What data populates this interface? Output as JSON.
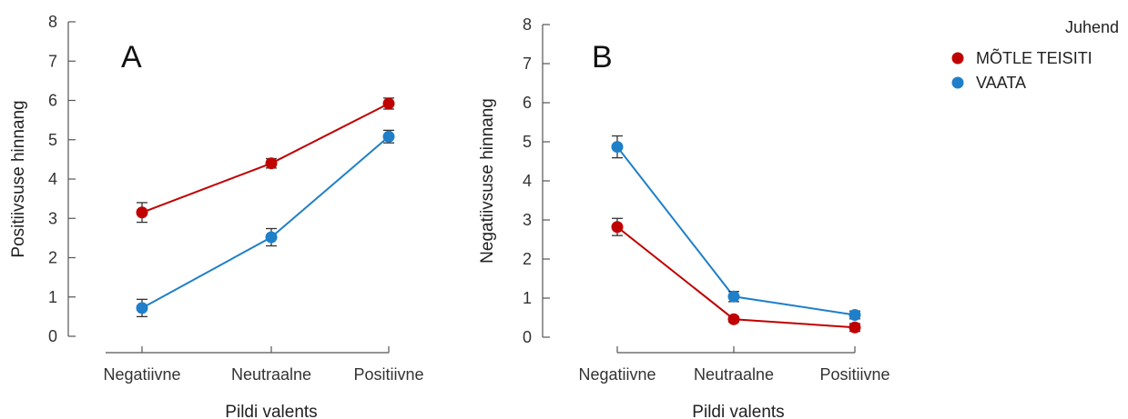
{
  "legend": {
    "title": "Juhend",
    "items": [
      {
        "label": "MÕTLE TEISITI",
        "color": "#c00000"
      },
      {
        "label": "VAATA",
        "color": "#1f7fc8"
      }
    ]
  },
  "chart_data": [
    {
      "type": "line",
      "panel": "A",
      "categories": [
        "Negatiivne",
        "Neutraalne",
        "Positiivne"
      ],
      "xlabel": "Pildi valents",
      "ylabel": "Positiivsuse hinnang",
      "ylim": [
        0,
        8
      ],
      "yticks": [
        0,
        1,
        2,
        3,
        4,
        5,
        6,
        7,
        8
      ],
      "series": [
        {
          "name": "MÕTLE TEISITI",
          "color": "#c00000",
          "values": [
            3.15,
            4.4,
            5.92
          ],
          "errors": [
            0.25,
            0.12,
            0.14
          ]
        },
        {
          "name": "VAATA",
          "color": "#1f7fc8",
          "values": [
            0.72,
            2.52,
            5.08
          ],
          "errors": [
            0.22,
            0.22,
            0.16
          ]
        }
      ]
    },
    {
      "type": "line",
      "panel": "B",
      "categories": [
        "Negatiivne",
        "Neutraalne",
        "Positiivne"
      ],
      "xlabel": "Pildi valents",
      "ylabel": "Negatiivsuse hinnang",
      "ylim": [
        0,
        8
      ],
      "yticks": [
        0,
        1,
        2,
        3,
        4,
        5,
        6,
        7,
        8
      ],
      "series": [
        {
          "name": "MÕTLE TEISITI",
          "color": "#c00000",
          "values": [
            2.82,
            0.46,
            0.25
          ],
          "errors": [
            0.22,
            0.07,
            0.1
          ]
        },
        {
          "name": "VAATA",
          "color": "#1f7fc8",
          "values": [
            4.87,
            1.04,
            0.57
          ],
          "errors": [
            0.28,
            0.13,
            0.1
          ]
        }
      ]
    }
  ]
}
